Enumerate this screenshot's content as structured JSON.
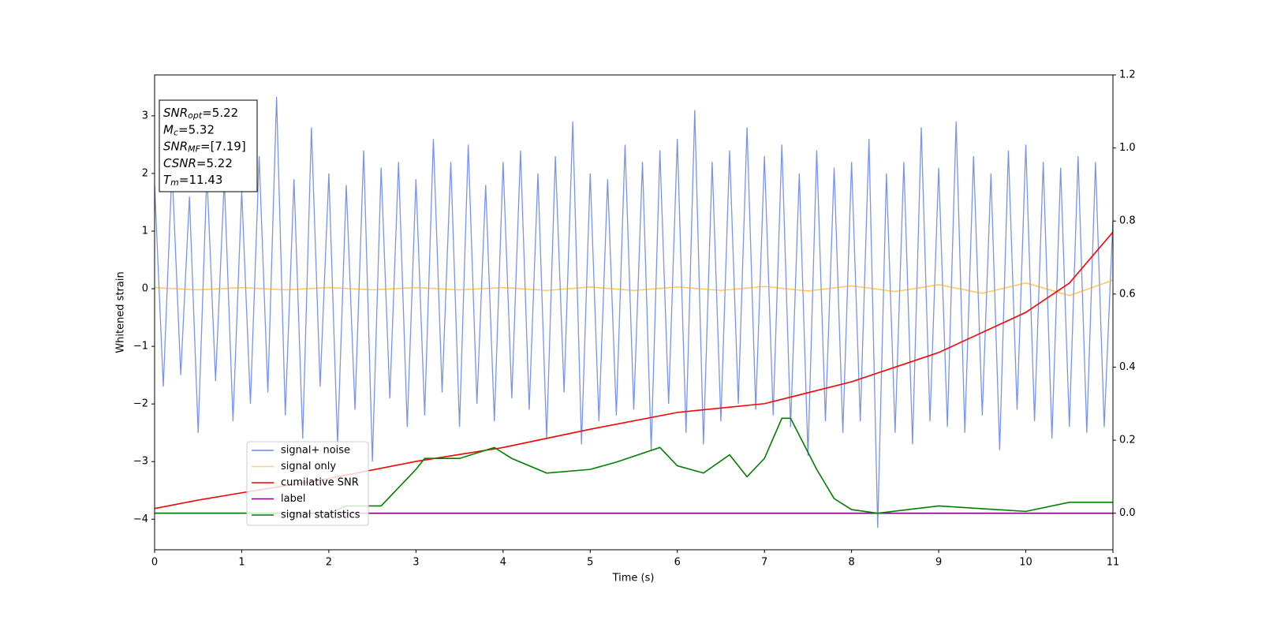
{
  "chart_data": {
    "type": "line",
    "xlabel": "Time (s)",
    "ylabel": "Whitened strain",
    "xlim": [
      0,
      11
    ],
    "xticks": [
      0,
      1,
      2,
      3,
      4,
      5,
      6,
      7,
      8,
      9,
      10,
      11
    ],
    "ylim": [
      -4.53,
      3.71
    ],
    "yticks": [
      {
        "value": -4,
        "label": "−4"
      },
      {
        "value": -3,
        "label": "−3"
      },
      {
        "value": -2,
        "label": "−2"
      },
      {
        "value": -1,
        "label": "−1"
      },
      0,
      1,
      2,
      3
    ],
    "y2lim": [
      -0.1,
      1.2
    ],
    "y2ticks": [
      {
        "value": 0,
        "label": "0.0"
      },
      {
        "value": 0.2,
        "label": "0.2"
      },
      {
        "value": 0.4,
        "label": "0.4"
      },
      {
        "value": 0.6,
        "label": "0.6"
      },
      {
        "value": 0.8,
        "label": "0.8"
      },
      {
        "value": 1.0,
        "label": "1.0"
      },
      {
        "value": 1.2,
        "label": "1.2"
      }
    ],
    "legend": "lower left",
    "annotation": [
      {
        "symbol": "SNR",
        "sub": "opt",
        "text": "=5.22"
      },
      {
        "symbol": "M",
        "sub": "c",
        "text": "=5.32"
      },
      {
        "symbol": "SNR",
        "sub": "MF",
        "text": "=[7.19]"
      },
      {
        "symbol": "CSNR",
        "text": "=5.22"
      },
      {
        "symbol": "T",
        "sub": "m",
        "text": "=11.43"
      }
    ],
    "series": [
      {
        "name": "signal+ noise",
        "color": "#6b8ae6",
        "x": [
          0,
          0.1,
          0.2,
          0.3,
          0.4,
          0.5,
          0.6,
          0.7,
          0.8,
          0.9,
          1,
          1.1,
          1.2,
          1.3,
          1.4,
          1.5,
          1.6,
          1.7,
          1.8,
          1.9,
          2,
          2.1,
          2.2,
          2.3,
          2.4,
          2.5,
          2.6,
          2.7,
          2.8,
          2.9,
          3,
          3.1,
          3.2,
          3.3,
          3.4,
          3.5,
          3.6,
          3.7,
          3.8,
          3.9,
          4,
          4.1,
          4.2,
          4.3,
          4.4,
          4.5,
          4.6,
          4.7,
          4.8,
          4.9,
          5,
          5.1,
          5.2,
          5.3,
          5.4,
          5.5,
          5.6,
          5.7,
          5.8,
          5.9,
          6,
          6.1,
          6.2,
          6.3,
          6.4,
          6.5,
          6.6,
          6.7,
          6.8,
          6.9,
          7,
          7.1,
          7.2,
          7.3,
          7.4,
          7.5,
          7.6,
          7.7,
          7.8,
          7.9,
          8,
          8.1,
          8.2,
          8.3,
          8.4,
          8.5,
          8.6,
          8.7,
          8.8,
          8.9,
          9,
          9.1,
          9.2,
          9.3,
          9.4,
          9.5,
          9.6,
          9.7,
          9.8,
          9.9,
          10,
          10.1,
          10.2,
          10.3,
          10.4,
          10.5,
          10.6,
          10.7,
          10.8,
          10.9,
          11
        ],
        "values": [
          1.8,
          -1.7,
          2.1,
          -1.5,
          1.6,
          -2.5,
          2.0,
          -1.6,
          1.9,
          -2.3,
          1.7,
          -2.0,
          2.3,
          -1.8,
          3.33,
          -2.2,
          1.9,
          -2.6,
          2.8,
          -1.7,
          2.0,
          -2.7,
          1.8,
          -2.1,
          2.4,
          -3.0,
          2.1,
          -1.9,
          2.2,
          -2.4,
          1.9,
          -2.2,
          2.6,
          -1.8,
          2.2,
          -2.4,
          2.5,
          -2.0,
          1.8,
          -2.3,
          2.2,
          -1.9,
          2.4,
          -2.1,
          2.0,
          -2.6,
          2.3,
          -1.8,
          2.9,
          -2.7,
          2.0,
          -2.3,
          1.9,
          -2.2,
          2.5,
          -2.1,
          2.2,
          -2.8,
          2.4,
          -2.0,
          2.6,
          -2.5,
          3.1,
          -2.7,
          2.2,
          -2.3,
          2.4,
          -2.0,
          2.8,
          -2.1,
          2.3,
          -2.2,
          2.5,
          -2.4,
          2.0,
          -2.9,
          2.4,
          -2.3,
          2.1,
          -2.5,
          2.2,
          -2.3,
          2.6,
          -4.15,
          2.0,
          -2.5,
          2.2,
          -2.7,
          2.8,
          -2.3,
          2.1,
          -2.4,
          2.9,
          -2.5,
          2.3,
          -2.2,
          2.0,
          -2.8,
          2.4,
          -2.1,
          2.5,
          -2.3,
          2.2,
          -2.6,
          2.1,
          -2.4,
          2.3,
          -2.5,
          2.2,
          -2.4,
          1.2
        ]
      },
      {
        "name": "signal only",
        "color": "#ffa500",
        "x": [
          0,
          0.5,
          1,
          1.5,
          2,
          2.5,
          3,
          3.5,
          4,
          4.5,
          5,
          5.5,
          6,
          6.5,
          7,
          7.5,
          8,
          8.5,
          9,
          9.5,
          10,
          10.5,
          11
        ],
        "values": [
          0.02,
          -0.02,
          0.02,
          -0.02,
          0.02,
          -0.02,
          0.02,
          -0.02,
          0.02,
          -0.03,
          0.03,
          -0.03,
          0.03,
          -0.03,
          0.04,
          -0.04,
          0.05,
          -0.05,
          0.07,
          -0.08,
          0.1,
          -0.12,
          0.15
        ]
      },
      {
        "name": "cumilative SNR",
        "color": "#ff0000",
        "axis": "y2",
        "x": [
          0,
          0.5,
          1,
          2,
          3,
          4,
          5,
          6,
          7,
          8,
          9,
          10,
          10.5,
          11
        ],
        "values": [
          0.013,
          0.036,
          0.056,
          0.095,
          0.142,
          0.18,
          0.23,
          0.276,
          0.3,
          0.36,
          0.44,
          0.55,
          0.63,
          0.77
        ]
      },
      {
        "name": "label",
        "color": "#800080",
        "axis": "y2",
        "x": [
          0,
          11
        ],
        "values": [
          0,
          0
        ]
      },
      {
        "name": "signal statistics",
        "color": "#008000",
        "axis": "y2",
        "x": [
          0,
          2,
          2.2,
          2.6,
          2.8,
          3.0,
          3.1,
          3.5,
          3.9,
          4.1,
          4.5,
          5,
          5.3,
          5.8,
          6,
          6.3,
          6.6,
          6.8,
          7.0,
          7.2,
          7.3,
          7.6,
          7.8,
          8,
          8.3,
          9,
          10,
          10.5,
          11
        ],
        "values": [
          0,
          0,
          0.02,
          0.02,
          0.07,
          0.12,
          0.15,
          0.15,
          0.18,
          0.15,
          0.11,
          0.12,
          0.14,
          0.18,
          0.13,
          0.11,
          0.16,
          0.1,
          0.15,
          0.26,
          0.26,
          0.12,
          0.04,
          0.01,
          0,
          0.02,
          0.005,
          0.03,
          0.03
        ]
      }
    ]
  }
}
